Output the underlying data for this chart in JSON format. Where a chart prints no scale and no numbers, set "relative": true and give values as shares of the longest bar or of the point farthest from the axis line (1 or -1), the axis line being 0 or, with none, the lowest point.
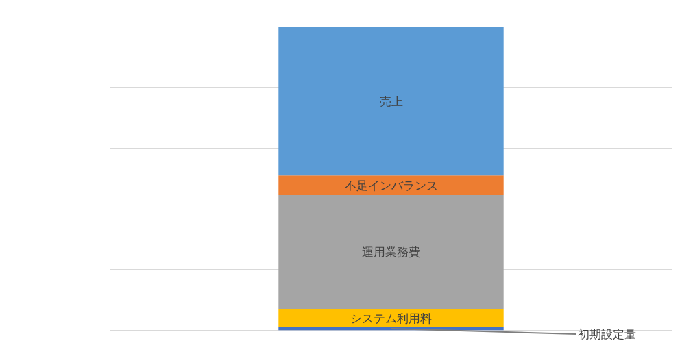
{
  "chart_data": {
    "type": "bar",
    "stacked": true,
    "relative": true,
    "categories": [
      null
    ],
    "grid": "y",
    "legend": false,
    "series": [
      {
        "name": "初期設定量",
        "color": "#4472c4",
        "values": [
          0.01
        ]
      },
      {
        "name": "システム利用料",
        "color": "#ffc000",
        "values": [
          0.06
        ]
      },
      {
        "name": "運用業務費",
        "color": "#a5a5a5",
        "values": [
          0.375
        ]
      },
      {
        "name": "不足インバランス",
        "color": "#ed7d31",
        "values": [
          0.065
        ]
      },
      {
        "name": "売上",
        "color": "#5b9bd5",
        "values": [
          0.49
        ]
      }
    ]
  }
}
